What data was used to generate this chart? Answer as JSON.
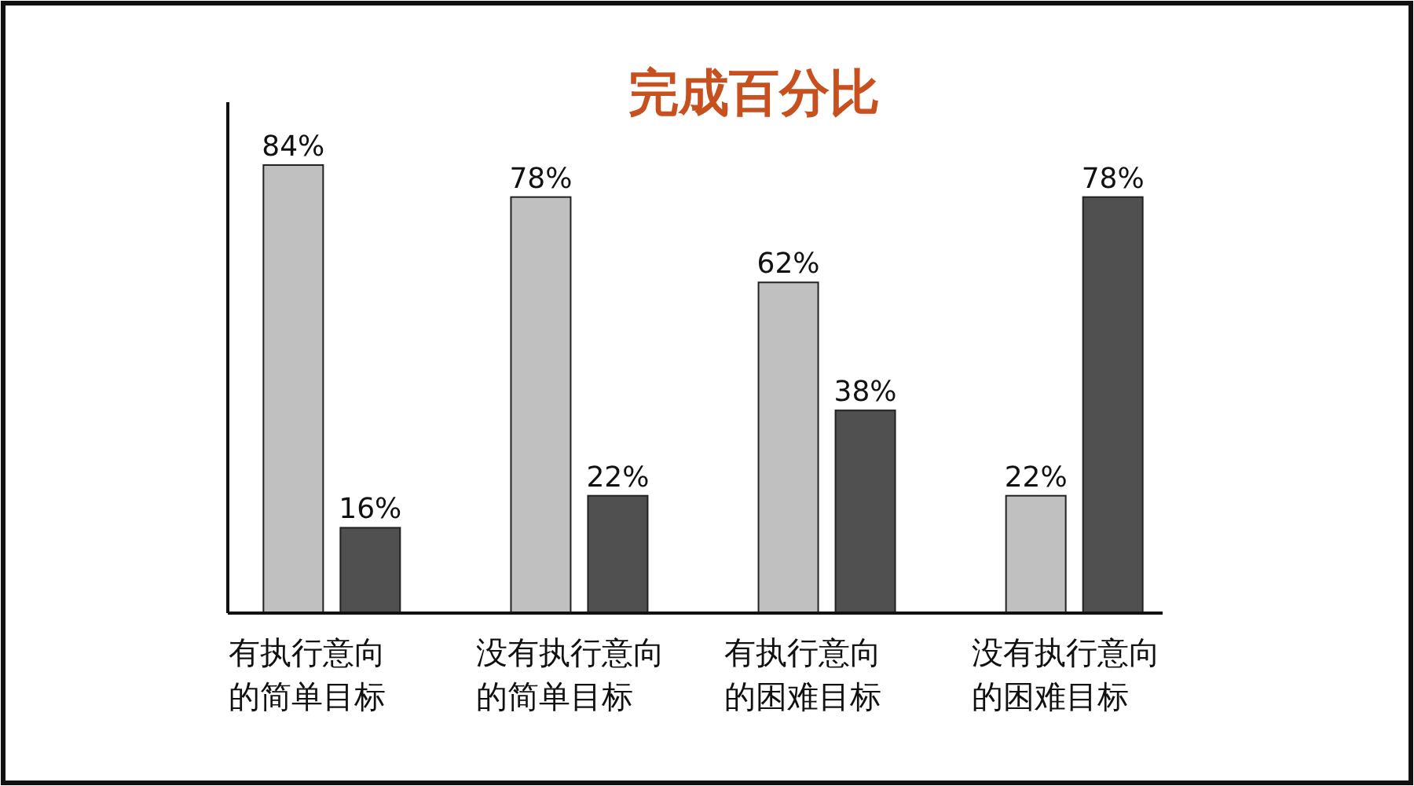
{
  "chart_data": {
    "type": "bar",
    "title": "完成百分比",
    "relative": false,
    "categories": [
      "有执行意向的简单目标",
      "没有执行意向的简单目标",
      "有执行意向的困难目标",
      "没有执行意向的困难目标"
    ],
    "series": [
      {
        "color": "#c0c0c0",
        "values": [
          84,
          78,
          62,
          22
        ],
        "value_labels": [
          "84%",
          "78%",
          "62%",
          "22%"
        ]
      },
      {
        "color": "#505050",
        "values": [
          16,
          22,
          38,
          78
        ],
        "value_labels": [
          "16%",
          "22%",
          "38%",
          "78%"
        ]
      }
    ]
  }
}
